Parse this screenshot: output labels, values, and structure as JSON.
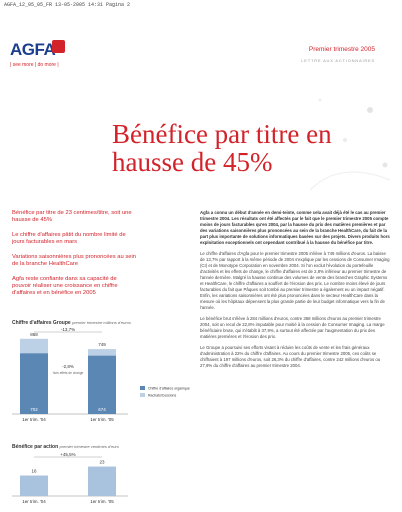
{
  "header": {
    "file_line": "AGFA_12_05_05_FR  13-05-2005  14:31  Pagina 2",
    "logo": "AGFA",
    "tagline": "| see more | do more |",
    "period": "Premier trimestre 2005",
    "subtitle": "LETTRE AUX ACTIONNAIRES"
  },
  "title_lines": [
    "Bénéfice par titre en",
    "hausse de 45%"
  ],
  "highlights": [
    "Bénéfice par titre de 23 centimes/titre, soit une hausse de 45%",
    "Le chiffre d'affaires pâtit du nombre limité de jours facturables en mars",
    "Variations saisonnières plus prononcées au sein de la branche HealthCare",
    "Agfa reste confiante dans sa capacité de pouvoir réaliser une croissance en chiffre d'affaires et en bénéfice en 2005"
  ],
  "charts": [
    {
      "type": "stacked-bar",
      "title": "Chiffre d'affaires Groupe",
      "note": "premier trimestre millions d'euros",
      "categories": [
        "1er trim. '04",
        "1er trim. '05"
      ],
      "series": [
        {
          "name": "Chiffre d'affaires organique",
          "color": "#5b87b4",
          "values": [
            702,
            674
          ]
        },
        {
          "name": "Rachats/Cessions",
          "color": "#bcd1e5",
          "values": [
            166,
            75
          ]
        }
      ],
      "totals": [
        868,
        749
      ],
      "annotations": [
        "-13,7%",
        "-2,8%",
        "hors effets de change"
      ],
      "ylim": [
        0,
        900
      ]
    },
    {
      "type": "bar",
      "title": "Bénéfice par action",
      "note": "premier trimestre centimes d'euro",
      "categories": [
        "1er trim. '04",
        "1er trim. '05"
      ],
      "values": [
        16,
        23
      ],
      "color": "#a9c3de",
      "annotations": [
        "+45,5%"
      ],
      "ylim": [
        0,
        25
      ]
    }
  ],
  "intro": "Agfa a connu un début d'année en demi-teinte, comme cela avait déjà été le cas au premier trimestre 2004. Les résultats ont été affectés par le fait que le premier trimestre 2005 compte moins de jours facturables qu'en 2004, par la hausse du prix des matières premières et par des variations saisonnières plus prononcées au sein de la branche HealthCare, du fait de la part plus importante de solutions informatiques basées sur des projets. Divers produits hors exploitation exceptionnels ont cependant contribué à la hausse du bénéfice par titre.",
  "paragraphs": [
    "Le chiffre d'affaires d'Agfa pour le premier trimestre 2005 s'élève à 749 millions d'euros. La baisse de 13,7% par rapport à la même période de 2004 s'explique par les cessions de Consumer Imaging (CI) et de Monotype Corporation en novembre 2004. Si l'on exclut l'évolution du portefeuille d'activités et les effets de change, le chiffre d'affaires est de 2,8% inférieur au premier trimestre de l'année dernière. Malgré la hausse continue des volumes de vente des branches Graphic Systems et HealthCare, le chiffre d'affaires a souffert de l'érosion des prix. Le nombre moins élevé de jours facturables du fait que Pâques soit tombé au premier trimestre a également eu un impact négatif. Enfin, les variations saisonnières ont été plus prononcées dans le secteur HealthCare dans la mesure où les hôpitaux dépensent la plus grande partie de leur budget informatique vers la fin de l'année.",
    "Le bénéfice brut s'élève à 284 millions d'euros, contre 368 millions d'euros au premier trimestre 2004, soit un recul de 22,8% imputable pour moitié à la cession de Consumer Imaging. La marge bénéficiaire brute, qui s'établit à 37,9%, a surtout été affectée par l'augmentation du prix des matières premières et l'érosion des prix.",
    "Le Groupe a poursuivi ses efforts visant à réduire les coûts de vente et les frais généraux d'administration à 22% du chiffre d'affaires. Au cours du premier trimestre 2005, ces coûts se chiffraient à 197 millions d'euros, soit 26,3% du chiffre d'affaires, contre 242 millions d'euros ou 27,9% du chiffre d'affaires au premier trimestre 2004."
  ]
}
